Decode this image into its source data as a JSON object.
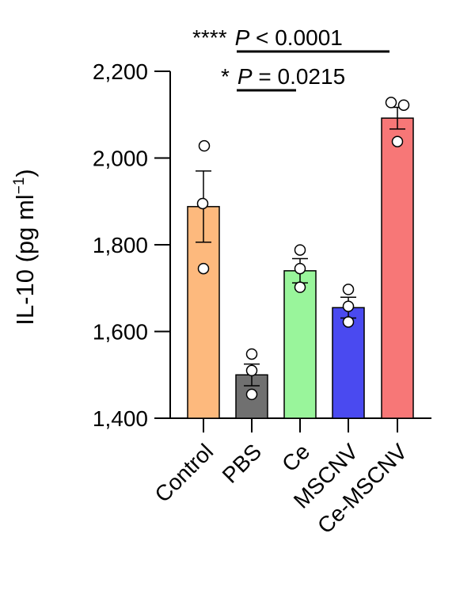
{
  "chart_data": {
    "type": "bar",
    "ylabel_main": "IL-10 (pg ml",
    "ylabel_sup": "−1",
    "ylabel_close": ")",
    "ylim": [
      1400,
      2200
    ],
    "yticks": [
      1400,
      1600,
      1800,
      2000,
      2200
    ],
    "ytick_labels": [
      "1,400",
      "1,600",
      "1,800",
      "2,000",
      "2,200"
    ],
    "categories": [
      "Control",
      "PBS",
      "Ce",
      "MSCNV",
      "Ce-MSCNV"
    ],
    "values": [
      1888,
      1500,
      1740,
      1655,
      2092
    ],
    "errors": [
      82,
      25,
      28,
      24,
      25
    ],
    "points": [
      [
        2028,
        1895,
        1745
      ],
      [
        1548,
        1510,
        1455
      ],
      [
        1788,
        1745,
        1702
      ],
      [
        1697,
        1658,
        1622
      ],
      [
        2128,
        2122,
        2038
      ]
    ],
    "colors": [
      "#FDB97D",
      "#707070",
      "#99F59B",
      "#4A4AF0",
      "#F77777"
    ],
    "annotations": [
      {
        "stars": "****",
        "p": "P",
        "text": " < 0.0001"
      },
      {
        "stars": "*",
        "p": "P",
        "text": " = 0.0215"
      }
    ],
    "grid": false,
    "legend": "none"
  }
}
